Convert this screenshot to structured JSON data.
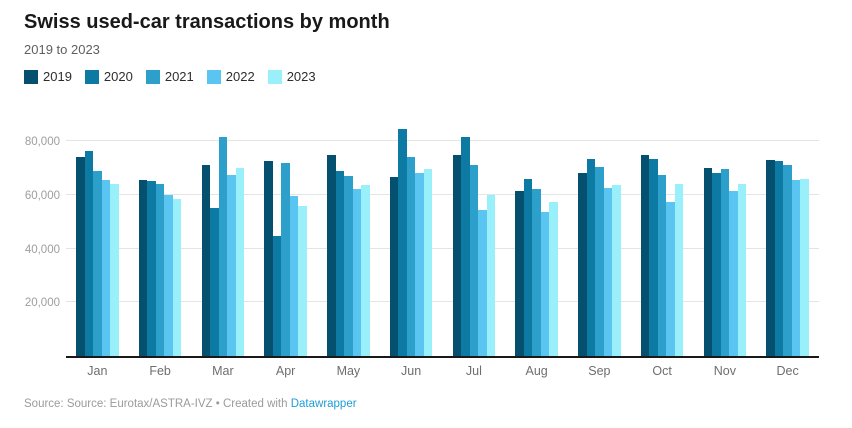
{
  "header": {
    "title": "Swiss used-car transactions by month",
    "subtitle": "2019 to 2023"
  },
  "chart_data": {
    "type": "bar",
    "title": "Swiss used-car transactions by month",
    "subtitle": "2019 to 2023",
    "xlabel": "",
    "ylabel": "",
    "grid": "horizontal",
    "legend_position": "top",
    "ylim": [
      0,
      86000
    ],
    "y_ticks": [
      20000,
      40000,
      60000,
      80000
    ],
    "y_tick_labels": [
      "20,000",
      "40,000",
      "60,000",
      "80,000"
    ],
    "categories": [
      "Jan",
      "Feb",
      "Mar",
      "Apr",
      "May",
      "Jun",
      "Jul",
      "Aug",
      "Sep",
      "Oct",
      "Nov",
      "Dec"
    ],
    "series": [
      {
        "name": "2019",
        "color": "#06506f",
        "values": [
          74000,
          65500,
          71000,
          72500,
          75000,
          66500,
          75000,
          61500,
          68000,
          75000,
          70000,
          73000
        ]
      },
      {
        "name": "2020",
        "color": "#0d7aa3",
        "values": [
          76500,
          65000,
          55000,
          44500,
          69000,
          84500,
          81500,
          66000,
          73500,
          73500,
          68000,
          72500
        ]
      },
      {
        "name": "2021",
        "color": "#2c9fcb",
        "values": [
          69000,
          64000,
          81500,
          72000,
          67000,
          74000,
          71000,
          62000,
          70500,
          67500,
          69500,
          71000
        ]
      },
      {
        "name": "2022",
        "color": "#5ac5f0",
        "values": [
          65500,
          60000,
          67500,
          59500,
          62000,
          68000,
          54500,
          53500,
          62500,
          57500,
          61500,
          65500
        ]
      },
      {
        "name": "2023",
        "color": "#99f0fb",
        "values": [
          64000,
          58500,
          70000,
          56000,
          63500,
          69500,
          60000,
          57500,
          63500,
          64000,
          64000,
          66000
        ]
      }
    ]
  },
  "footer": {
    "prefix": "Source: Source: Eurotax/ASTRA-IVZ • Created with ",
    "link_label": "Datawrapper",
    "link_color": "#1e9cd8"
  },
  "style": {
    "gridline_color": "#e4e4e4",
    "axis_color": "#191919"
  }
}
